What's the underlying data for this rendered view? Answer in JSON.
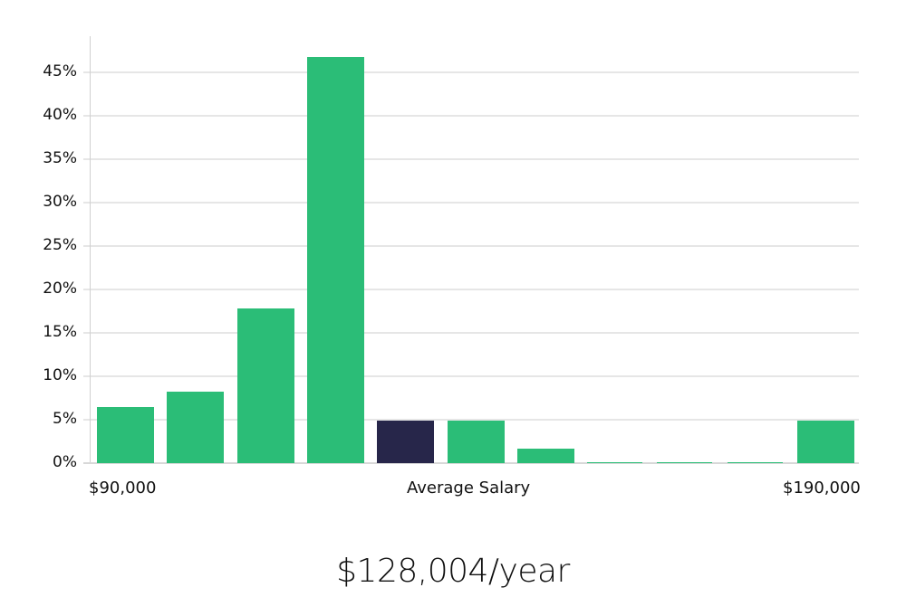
{
  "chart_data": {
    "type": "bar",
    "title": "",
    "xlabel": "Average Salary",
    "ylabel": "",
    "ylim": [
      0,
      48
    ],
    "yticks": [
      "0%",
      "5%",
      "10%",
      "15%",
      "20%",
      "25%",
      "30%",
      "35%",
      "40%",
      "45%"
    ],
    "ytick_values": [
      0,
      5,
      10,
      15,
      20,
      25,
      30,
      35,
      40,
      45
    ],
    "x_range_labels": {
      "min": "$90,000",
      "max": "$190,000"
    },
    "categories": [
      "bin1",
      "bin2",
      "bin3",
      "bin4",
      "bin5",
      "bin6",
      "bin7",
      "bin8",
      "bin9",
      "bin10",
      "bin11"
    ],
    "values": [
      6.5,
      8.2,
      17.8,
      46.8,
      4.9,
      4.9,
      1.7,
      0.1,
      0.1,
      0.1,
      4.9
    ],
    "highlight_index": 4,
    "grid": true,
    "legend": null
  },
  "colors": {
    "bar": "#2bbd77",
    "highlight": "#27264a",
    "grid": "#e6e6e6",
    "axis": "#d0d0d0",
    "text": "#111111"
  },
  "labels": {
    "x_min": "$90,000",
    "x_center": "Average Salary",
    "x_max": "$190,000"
  },
  "summary": {
    "salary": "$128,004/year"
  }
}
